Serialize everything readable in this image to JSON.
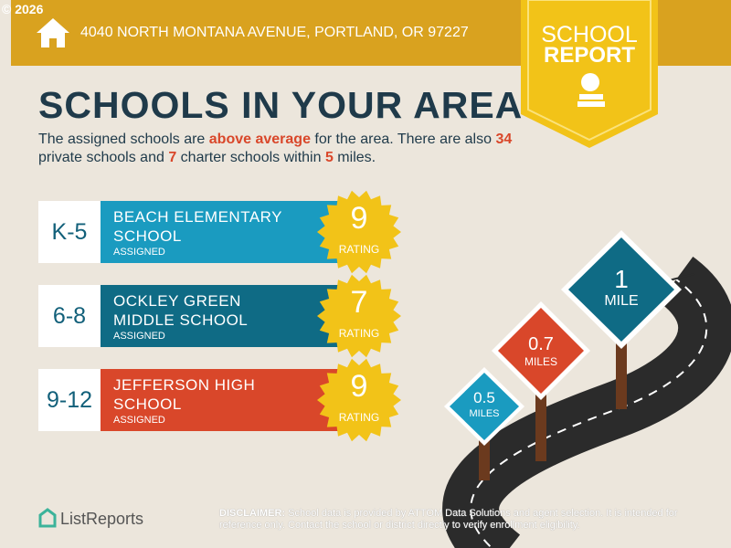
{
  "copyright": "© 2026",
  "address": "4040 NORTH MONTANA AVENUE, PORTLAND, OR 97227",
  "badge": {
    "line1": "SCHOOL",
    "line2": "REPORT"
  },
  "title": "SCHOOLS IN YOUR AREA",
  "intro": [
    "The assigned schools are ",
    "above average",
    " for the area. There are also ",
    "34",
    " private schools and ",
    "7",
    " charter schools within ",
    "5",
    " miles."
  ],
  "schools": [
    {
      "grades": "K-5",
      "name": "BEACH ELEMENTARY SCHOOL",
      "status": "ASSIGNED",
      "rating": "9",
      "rating_label": "RATING"
    },
    {
      "grades": "6-8",
      "name": "OCKLEY GREEN MIDDLE SCHOOL",
      "status": "ASSIGNED",
      "rating": "7",
      "rating_label": "RATING"
    },
    {
      "grades": "9-12",
      "name": "JEFFERSON HIGH SCHOOL",
      "status": "ASSIGNED",
      "rating": "9",
      "rating_label": "RATING"
    }
  ],
  "signs": [
    {
      "distance": "1",
      "unit": "MILE"
    },
    {
      "distance": "0.7",
      "unit": "MILES"
    },
    {
      "distance": "0.5",
      "unit": "MILES"
    }
  ],
  "footer": {
    "logo": "ListReports",
    "disclaimer_label": "DISCLAIMER:",
    "disclaimer": " School data is provided by ATTOM Data Solutions and agent selection. It is intended for reference only. Contact the school or district directly to verify enrollment eligibility."
  }
}
